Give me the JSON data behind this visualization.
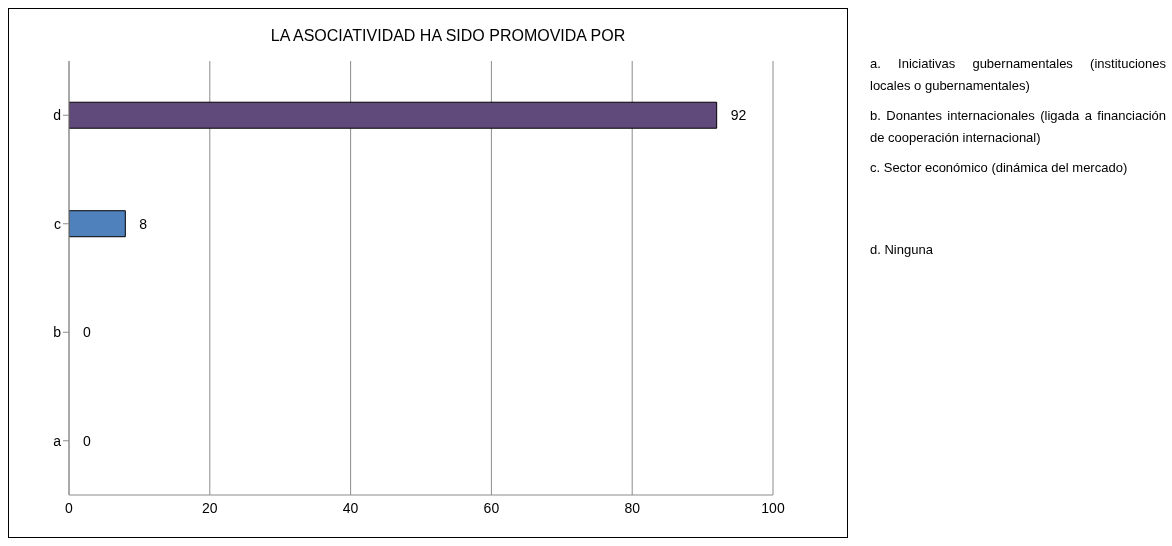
{
  "chart_data": {
    "type": "bar",
    "orientation": "horizontal",
    "title": "LA ASOCIATIVIDAD HA SIDO PROMOVIDA POR",
    "categories": [
      "d",
      "c",
      "b",
      "a"
    ],
    "values": [
      92,
      8,
      0,
      0
    ],
    "colors": [
      "#604a7b",
      "#4f81bd",
      null,
      null
    ],
    "xlim": [
      0,
      100
    ],
    "xticks": [
      0,
      20,
      40,
      60,
      80,
      100
    ],
    "grid": "x",
    "data_labels": true,
    "annotations": [
      "a. Iniciativas gubernamentales (instituciones locales o gubernamentales)",
      "b. Donantes internacionales (ligada a financiación de cooperación internacional)",
      "c. Sector económico (dinámica del mercado)",
      "d. Ninguna"
    ]
  }
}
